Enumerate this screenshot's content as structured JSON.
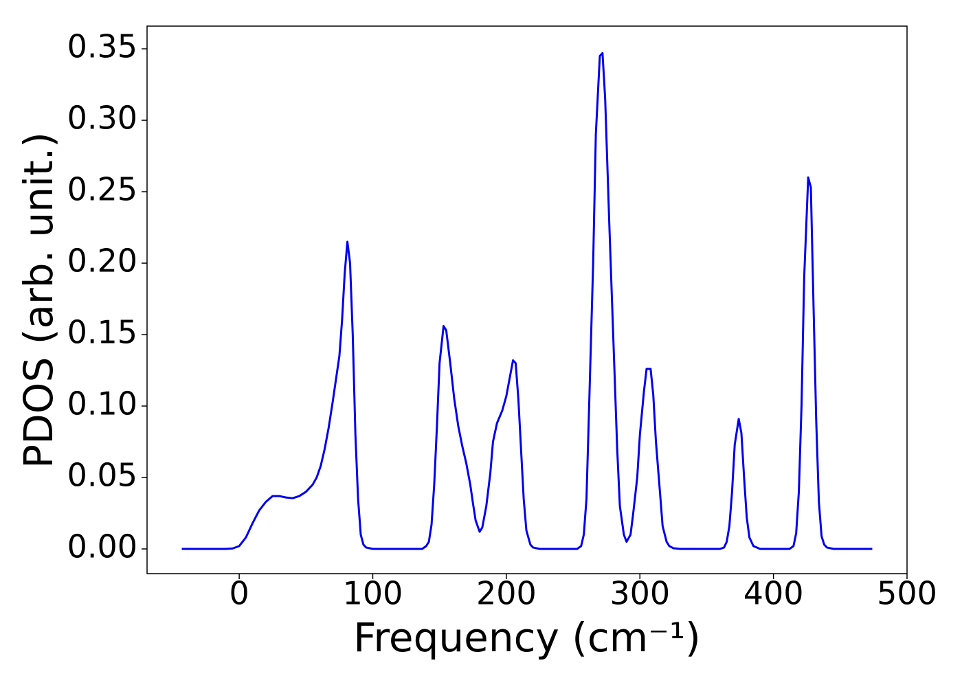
{
  "chart_data": {
    "type": "line",
    "xlabel": "Frequency (cm⁻¹)",
    "ylabel": "PDOS (arb. unit.)",
    "xlim": [
      -69,
      500
    ],
    "ylim": [
      -0.0173,
      0.3659
    ],
    "xticks": [
      0,
      100,
      200,
      300,
      400,
      500
    ],
    "yticks": [
      {
        "value": 0,
        "label": "0.00"
      },
      0.05,
      {
        "value": 0.1,
        "label": "0.10"
      },
      0.15,
      {
        "value": 0.2,
        "label": "0.20"
      },
      0.25,
      {
        "value": 0.3,
        "label": "0.30"
      },
      0.35
    ],
    "grid": false,
    "x": [
      -43,
      -10,
      -5,
      0,
      5,
      10,
      15,
      20,
      25,
      30,
      35,
      40,
      45,
      50,
      55,
      58,
      61,
      64,
      67,
      70,
      75,
      77,
      79,
      81,
      83,
      85,
      87,
      89,
      91,
      93,
      95,
      100,
      137,
      140,
      142,
      144,
      146,
      148,
      150,
      153,
      155,
      158,
      161,
      164,
      167,
      170,
      173,
      175,
      177,
      180,
      182,
      185,
      188,
      190,
      193,
      197,
      200,
      203,
      205,
      207,
      209,
      211,
      213,
      215,
      218,
      220,
      225,
      253,
      256,
      258,
      260,
      262,
      265,
      267,
      270,
      272,
      274,
      277,
      280,
      283,
      285,
      288,
      290,
      293,
      295,
      298,
      300,
      303,
      305,
      308,
      310,
      312,
      315,
      317,
      320,
      322,
      325,
      330,
      360,
      363,
      365,
      367,
      369,
      371,
      374,
      376,
      378,
      380,
      382,
      385,
      390,
      412,
      415,
      417,
      419,
      421,
      423,
      426,
      428,
      430,
      432,
      434,
      436,
      438,
      440,
      445,
      474
    ],
    "series": [
      {
        "color": "#0000ee",
        "values": [
          0,
          0,
          0.0003,
          0.002,
          0.008,
          0.018,
          0.027,
          0.033,
          0.037,
          0.037,
          0.036,
          0.0355,
          0.037,
          0.04,
          0.045,
          0.05,
          0.058,
          0.07,
          0.085,
          0.103,
          0.135,
          0.16,
          0.193,
          0.215,
          0.2,
          0.15,
          0.08,
          0.035,
          0.01,
          0.003,
          0.001,
          0,
          0,
          0.002,
          0.005,
          0.017,
          0.045,
          0.085,
          0.13,
          0.156,
          0.153,
          0.13,
          0.105,
          0.086,
          0.072,
          0.06,
          0.045,
          0.032,
          0.02,
          0.012,
          0.015,
          0.03,
          0.053,
          0.075,
          0.088,
          0.097,
          0.107,
          0.122,
          0.132,
          0.13,
          0.105,
          0.07,
          0.035,
          0.013,
          0.003,
          0.001,
          0,
          0,
          0.002,
          0.01,
          0.035,
          0.1,
          0.2,
          0.29,
          0.345,
          0.347,
          0.315,
          0.23,
          0.15,
          0.07,
          0.03,
          0.01,
          0.005,
          0.01,
          0.025,
          0.05,
          0.08,
          0.11,
          0.126,
          0.126,
          0.108,
          0.075,
          0.04,
          0.016,
          0.005,
          0.002,
          0.0005,
          0,
          0,
          0.001,
          0.005,
          0.016,
          0.04,
          0.073,
          0.091,
          0.081,
          0.05,
          0.022,
          0.008,
          0.002,
          0,
          0,
          0.002,
          0.011,
          0.04,
          0.1,
          0.19,
          0.26,
          0.253,
          0.17,
          0.09,
          0.033,
          0.009,
          0.003,
          0.001,
          0,
          0
        ]
      }
    ]
  }
}
